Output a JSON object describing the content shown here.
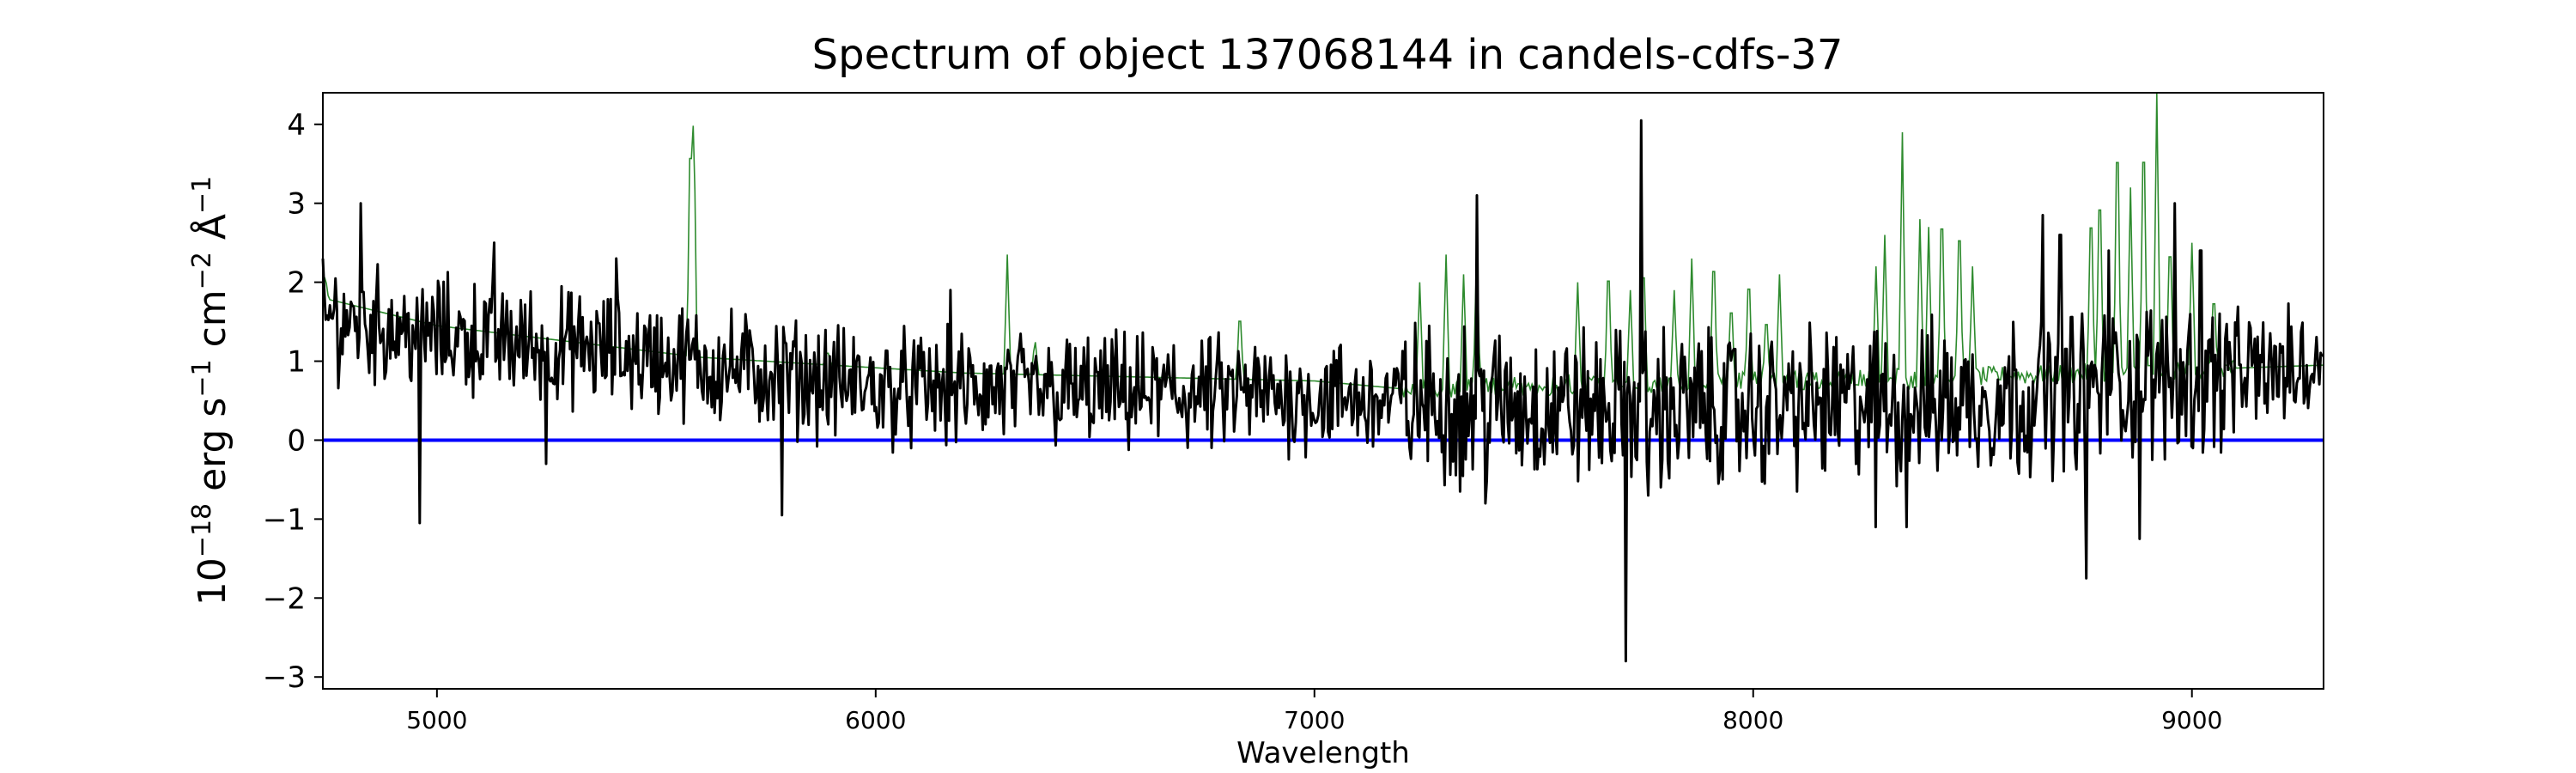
{
  "chart_data": {
    "type": "line",
    "title": "Spectrum of object 137068144 in candels-cdfs-37",
    "xlabel": "Wavelength",
    "ylabel": {
      "prefix": "10",
      "prefix_exp": "−18",
      "erg": " erg s",
      "s_exp": "−1",
      "cm": " cm",
      "cm_exp": "−2",
      "ang": " Å",
      "ang_exp": "−1"
    },
    "xlim": [
      4740,
      9300
    ],
    "ylim": [
      -3.15,
      4.4
    ],
    "xticks": [
      5000,
      6000,
      7000,
      8000,
      9000
    ],
    "xtick_labels": [
      "5000",
      "6000",
      "7000",
      "8000",
      "9000"
    ],
    "yticks": [
      -3,
      -2,
      -1,
      0,
      1,
      2,
      3,
      4
    ],
    "ytick_labels": [
      "−3",
      "−2",
      "−1",
      "0",
      "1",
      "2",
      "3",
      "4"
    ],
    "grid": false,
    "series": [
      {
        "role": "model",
        "color": "#2e8b2e",
        "baseline": [
          [
            4740,
            1.8
          ],
          [
            5000,
            1.45
          ],
          [
            5600,
            1.05
          ],
          [
            6200,
            0.85
          ],
          [
            7000,
            0.75
          ],
          [
            7200,
            0.65
          ],
          [
            8000,
            0.75
          ],
          [
            8500,
            0.8
          ],
          [
            9300,
            0.95
          ]
        ],
        "features": [
          [
            4745,
            2.1
          ],
          [
            5578,
            4.4
          ],
          [
            5585,
            4.4
          ],
          [
            5890,
            1.15
          ],
          [
            6300,
            2.35
          ],
          [
            6363,
            1.3
          ],
          [
            6830,
            1.75
          ],
          [
            7240,
            2.0
          ],
          [
            7300,
            2.35
          ],
          [
            7340,
            2.1
          ],
          [
            7370,
            2.4
          ],
          [
            7600,
            2.0
          ],
          [
            7670,
            2.45
          ],
          [
            7720,
            1.9
          ],
          [
            7750,
            2.5
          ],
          [
            7820,
            1.9
          ],
          [
            7860,
            2.3
          ],
          [
            7910,
            2.6
          ],
          [
            7950,
            1.9
          ],
          [
            7990,
            2.3
          ],
          [
            8030,
            1.7
          ],
          [
            8060,
            2.1
          ],
          [
            8280,
            2.2
          ],
          [
            8300,
            2.6
          ],
          [
            8340,
            3.9
          ],
          [
            8380,
            2.8
          ],
          [
            8400,
            2.7
          ],
          [
            8430,
            3.3
          ],
          [
            8470,
            3.1
          ],
          [
            8500,
            2.2
          ],
          [
            8770,
            3.3
          ],
          [
            8790,
            3.6
          ],
          [
            8830,
            4.4
          ],
          [
            8860,
            3.2
          ],
          [
            8890,
            4.4
          ],
          [
            8920,
            4.4
          ],
          [
            8950,
            2.8
          ],
          [
            9000,
            2.5
          ],
          [
            9050,
            2.0
          ]
        ]
      },
      {
        "role": "flux",
        "color": "#000000",
        "trend": [
          [
            4740,
            1.55
          ],
          [
            5000,
            1.35
          ],
          [
            5500,
            1.05
          ],
          [
            6000,
            0.65
          ],
          [
            6500,
            0.6
          ],
          [
            7000,
            0.55
          ],
          [
            7300,
            0.45
          ],
          [
            7700,
            0.4
          ],
          [
            8000,
            0.4
          ],
          [
            8500,
            0.5
          ],
          [
            9000,
            0.8
          ],
          [
            9300,
            0.95
          ]
        ],
        "features": [
          [
            4825,
            3.0
          ],
          [
            4960,
            -1.05
          ],
          [
            5130,
            2.5
          ],
          [
            5250,
            -0.3
          ],
          [
            5410,
            2.3
          ],
          [
            5785,
            -0.95
          ],
          [
            6170,
            1.9
          ],
          [
            6680,
            1.2
          ],
          [
            7370,
            3.1
          ],
          [
            7390,
            -0.8
          ],
          [
            7710,
            -2.8
          ],
          [
            7745,
            4.05
          ],
          [
            7760,
            -0.7
          ],
          [
            8280,
            -1.1
          ],
          [
            8350,
            -1.1
          ],
          [
            8660,
            2.85
          ],
          [
            8700,
            2.6
          ],
          [
            8760,
            -1.75
          ],
          [
            8810,
            2.4
          ],
          [
            8880,
            -1.25
          ],
          [
            8960,
            3.0
          ],
          [
            9020,
            2.4
          ]
        ]
      },
      {
        "role": "zero-line",
        "color": "#0000ff",
        "y": 0
      }
    ]
  }
}
